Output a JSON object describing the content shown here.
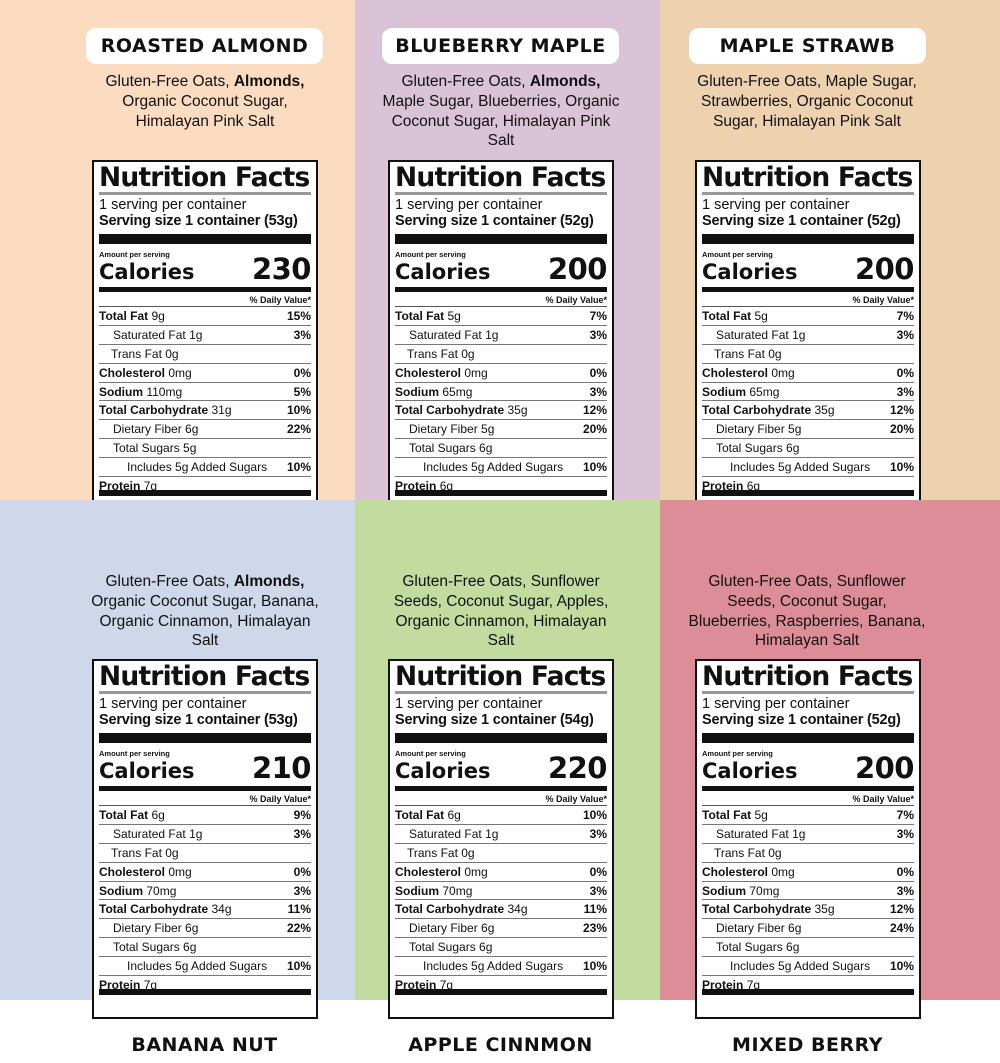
{
  "colors": [
    "#fcdcc0",
    "#dac3d6",
    "#eed1ae",
    "#cfd7ea",
    "#c2dca0",
    "#dc8d97"
  ],
  "label": {
    "title": "Nutrition Facts",
    "servings": "1 serving per container",
    "amount_per_serving": "Amount per serving",
    "calories_label": "Calories",
    "daily_value": "% Daily Value*",
    "nutrient_names": [
      "Total Fat",
      "Saturated Fat",
      "Trans Fat",
      "Cholesterol",
      "Sodium",
      "Total Carbohydrate",
      "Dietary Fiber",
      "Total Sugars",
      "Includes 5g Added Sugars",
      "Protein"
    ]
  },
  "products": [
    {
      "name": "ROASTED ALMOND",
      "ingredients": [
        {
          "t": "Gluten-Free Oats, "
        },
        {
          "t": "Almonds,",
          "b": true
        },
        {
          "t": " Organic Coconut Sugar, Himalayan Pink Salt"
        }
      ],
      "serving_size": "Serving size 1 container (53g)",
      "calories": "230",
      "nutrients": [
        [
          "9g",
          "15%"
        ],
        [
          "1g",
          "3%"
        ],
        [
          "0g",
          ""
        ],
        [
          "0mg",
          "0%"
        ],
        [
          "110mg",
          "5%"
        ],
        [
          "31g",
          "10%"
        ],
        [
          "6g",
          "22%"
        ],
        [
          "5g",
          ""
        ],
        [
          "",
          "10%"
        ],
        [
          "7g",
          ""
        ]
      ]
    },
    {
      "name": "BLUEBERRY MAPLE",
      "ingredients": [
        {
          "t": "Gluten-Free Oats, "
        },
        {
          "t": "Almonds,",
          "b": true
        },
        {
          "t": " Maple Sugar, Blueberries, Organic Coconut Sugar, Himalayan Pink Salt"
        }
      ],
      "serving_size": "Serving size 1 container (52g)",
      "calories": "200",
      "nutrients": [
        [
          "5g",
          "7%"
        ],
        [
          "1g",
          "3%"
        ],
        [
          "0g",
          ""
        ],
        [
          "0mg",
          "0%"
        ],
        [
          "65mg",
          "3%"
        ],
        [
          "35g",
          "12%"
        ],
        [
          "5g",
          "20%"
        ],
        [
          "6g",
          ""
        ],
        [
          "",
          "10%"
        ],
        [
          "6g",
          ""
        ]
      ]
    },
    {
      "name": "MAPLE STRAWB",
      "ingredients": [
        {
          "t": "Gluten-Free Oats, Maple Sugar, Strawberries, Organic Coconut Sugar, Himalayan Pink Salt"
        }
      ],
      "serving_size": "Serving size 1 container (52g)",
      "calories": "200",
      "nutrients": [
        [
          "5g",
          "7%"
        ],
        [
          "1g",
          "3%"
        ],
        [
          "0g",
          ""
        ],
        [
          "0mg",
          "0%"
        ],
        [
          "65mg",
          "3%"
        ],
        [
          "35g",
          "12%"
        ],
        [
          "5g",
          "20%"
        ],
        [
          "6g",
          ""
        ],
        [
          "",
          "10%"
        ],
        [
          "6g",
          ""
        ]
      ]
    },
    {
      "name": "BANANA NUT",
      "ingredients": [
        {
          "t": "Gluten-Free Oats, "
        },
        {
          "t": "Almonds,",
          "b": true
        },
        {
          "t": " Organic Coconut Sugar, Banana, Organic Cinnamon, Himalayan Salt"
        }
      ],
      "serving_size": "Serving size 1 container (53g)",
      "calories": "210",
      "nutrients": [
        [
          "6g",
          "9%"
        ],
        [
          "1g",
          "3%"
        ],
        [
          "0g",
          ""
        ],
        [
          "0mg",
          "0%"
        ],
        [
          "70mg",
          "3%"
        ],
        [
          "34g",
          "11%"
        ],
        [
          "6g",
          "22%"
        ],
        [
          "6g",
          ""
        ],
        [
          "",
          "10%"
        ],
        [
          "7g",
          ""
        ]
      ]
    },
    {
      "name": "APPLE CINNMON",
      "ingredients": [
        {
          "t": "Gluten-Free Oats, Sunflower Seeds, Coconut Sugar, Apples, Organic Cinnamon, Himalayan Salt"
        }
      ],
      "serving_size": "Serving size 1 container (54g)",
      "calories": "220",
      "nutrients": [
        [
          "6g",
          "10%"
        ],
        [
          "1g",
          "3%"
        ],
        [
          "0g",
          ""
        ],
        [
          "0mg",
          "0%"
        ],
        [
          "70mg",
          "3%"
        ],
        [
          "34g",
          "11%"
        ],
        [
          "6g",
          "23%"
        ],
        [
          "6g",
          ""
        ],
        [
          "",
          "10%"
        ],
        [
          "7g",
          ""
        ]
      ]
    },
    {
      "name": "MIXED BERRY",
      "ingredients": [
        {
          "t": "Gluten-Free Oats, Sunflower Seeds, Coconut Sugar, Blueberries, Raspberries, Banana, Himalayan Salt"
        }
      ],
      "serving_size": "Serving size 1 container (52g)",
      "calories": "200",
      "nutrients": [
        [
          "5g",
          "7%"
        ],
        [
          "1g",
          "3%"
        ],
        [
          "0g",
          ""
        ],
        [
          "0mg",
          "0%"
        ],
        [
          "70mg",
          "3%"
        ],
        [
          "35g",
          "12%"
        ],
        [
          "6g",
          "24%"
        ],
        [
          "6g",
          ""
        ],
        [
          "",
          "10%"
        ],
        [
          "7g",
          ""
        ]
      ]
    }
  ]
}
